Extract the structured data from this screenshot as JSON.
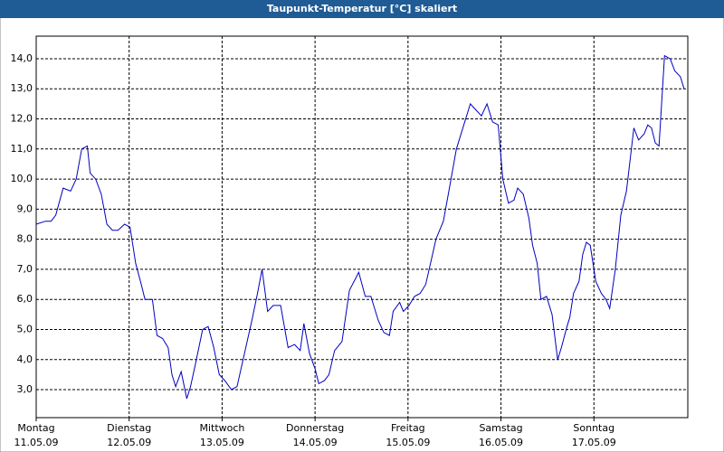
{
  "chart_data": {
    "type": "line",
    "title": "Taupunkt-Temperatur [°C] skaliert",
    "xlim": [
      0,
      7.01
    ],
    "ylim": [
      2.07,
      14.75
    ],
    "xticks": [
      {
        "value": 0,
        "label": "Montag"
      },
      {
        "value": 1,
        "label": "Dienstag"
      },
      {
        "value": 2,
        "label": "Mittwoch"
      },
      {
        "value": 3,
        "label": "Donnerstag"
      },
      {
        "value": 4,
        "label": "Freitag"
      },
      {
        "value": 5,
        "label": "Samstag"
      },
      {
        "value": 6,
        "label": "Sonntag"
      }
    ],
    "xtick_dates": [
      "11.05.09",
      "12.05.09",
      "13.05.09",
      "14.05.09",
      "15.05.09",
      "16.05.09",
      "17.05.09"
    ],
    "yticks": [
      {
        "value": 3,
        "label": "3,0"
      },
      {
        "value": 4,
        "label": "4,0"
      },
      {
        "value": 5,
        "label": "5,0"
      },
      {
        "value": 6,
        "label": "6,0"
      },
      {
        "value": 7,
        "label": "7,0"
      },
      {
        "value": 8,
        "label": "8,0"
      },
      {
        "value": 9,
        "label": "9,0"
      },
      {
        "value": 10,
        "label": "10,0"
      },
      {
        "value": 11,
        "label": "11,0"
      },
      {
        "value": 12,
        "label": "12,0"
      },
      {
        "value": 13,
        "label": "13,0"
      },
      {
        "value": 14,
        "label": "14,0"
      }
    ],
    "grid": true,
    "color": "#0000c0",
    "x": [
      0,
      0.1,
      0.16,
      0.21,
      0.29,
      0.37,
      0.43,
      0.49,
      0.55,
      0.58,
      0.64,
      0.7,
      0.76,
      0.82,
      0.88,
      0.95,
      1.01,
      1.07,
      1.13,
      1.17,
      1.25,
      1.3,
      1.36,
      1.42,
      1.46,
      1.5,
      1.56,
      1.62,
      1.66,
      1.71,
      1.79,
      1.85,
      1.91,
      1.97,
      2.03,
      2.1,
      2.16,
      2.24,
      2.32,
      2.38,
      2.43,
      2.49,
      2.55,
      2.63,
      2.71,
      2.78,
      2.84,
      2.88,
      2.94,
      3.0,
      3.04,
      3.1,
      3.15,
      3.21,
      3.29,
      3.37,
      3.47,
      3.54,
      3.6,
      3.68,
      3.74,
      3.8,
      3.84,
      3.91,
      3.95,
      4.01,
      4.07,
      4.13,
      4.19,
      4.25,
      4.3,
      4.38,
      4.44,
      4.52,
      4.6,
      4.67,
      4.73,
      4.79,
      4.85,
      4.91,
      4.97,
      5.02,
      5.08,
      5.14,
      5.18,
      5.24,
      5.3,
      5.34,
      5.39,
      5.43,
      5.49,
      5.55,
      5.61,
      5.65,
      5.71,
      5.74,
      5.78,
      5.84,
      5.88,
      5.92,
      5.96,
      6.02,
      6.08,
      6.13,
      6.17,
      6.23,
      6.29,
      6.35,
      6.43,
      6.48,
      6.54,
      6.58,
      6.62,
      6.66,
      6.7,
      6.76,
      6.82,
      6.87,
      6.93,
      6.97
    ],
    "values": [
      8.5,
      8.6,
      8.6,
      8.8,
      9.7,
      9.6,
      10.0,
      11.0,
      11.1,
      10.2,
      10.0,
      9.5,
      8.5,
      8.3,
      8.3,
      8.5,
      8.4,
      7.2,
      6.5,
      6.0,
      6.0,
      4.8,
      4.7,
      4.4,
      3.5,
      3.1,
      3.6,
      2.7,
      3.1,
      3.8,
      5.0,
      5.1,
      4.4,
      3.5,
      3.3,
      3.0,
      3.1,
      4.2,
      5.3,
      6.2,
      7.0,
      5.6,
      5.8,
      5.8,
      4.4,
      4.5,
      4.3,
      5.2,
      4.2,
      3.7,
      3.2,
      3.3,
      3.5,
      4.3,
      4.6,
      6.3,
      6.9,
      6.1,
      6.1,
      5.3,
      4.9,
      4.8,
      5.6,
      5.9,
      5.6,
      5.8,
      6.1,
      6.2,
      6.5,
      7.3,
      8.0,
      8.6,
      9.6,
      11.0,
      11.8,
      12.5,
      12.3,
      12.1,
      12.5,
      11.9,
      11.8,
      10.0,
      9.2,
      9.3,
      9.7,
      9.5,
      8.7,
      7.8,
      7.2,
      6.0,
      6.1,
      5.5,
      4.0,
      4.4,
      5.1,
      5.4,
      6.2,
      6.6,
      7.5,
      7.9,
      7.8,
      6.6,
      6.2,
      6.0,
      5.7,
      7.0,
      8.8,
      9.6,
      11.7,
      11.3,
      11.5,
      11.8,
      11.7,
      11.2,
      11.1,
      14.1,
      14.0,
      13.6,
      13.4,
      13.0
    ]
  }
}
